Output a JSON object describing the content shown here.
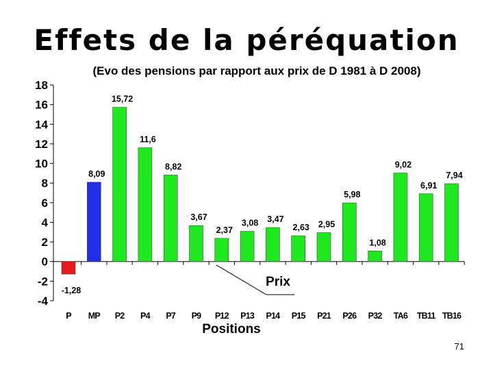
{
  "slide": {
    "title": "Effets de la péréquation",
    "subtitle": "(Evo des pensions par rapport aux prix de D 1981 à D 2008)",
    "page_number": "71"
  },
  "chart_data": {
    "type": "bar",
    "title": "Effets de la péréquation",
    "subtitle": "(Evo des pensions par rapport aux prix de D 1981 à D 2008)",
    "xlabel": "Positions",
    "ylabel": "",
    "ylim": [
      -4,
      18
    ],
    "yticks": [
      18,
      16,
      14,
      12,
      10,
      8,
      6,
      4,
      2,
      0,
      -2,
      -4
    ],
    "grid": false,
    "categories": [
      "P",
      "MP",
      "P2",
      "P4",
      "P7",
      "P9",
      "P12",
      "P13",
      "P14",
      "P15",
      "P21",
      "P26",
      "P32",
      "TA6",
      "TB11",
      "TB16"
    ],
    "values": [
      -1.28,
      8.09,
      15.72,
      11.6,
      8.82,
      3.67,
      2.37,
      3.08,
      3.47,
      2.63,
      2.95,
      5.98,
      1.08,
      9.02,
      6.91,
      7.94
    ],
    "value_labels": [
      "-1,28",
      "8,09",
      "15,72",
      "11,6",
      "8,82",
      "3,67",
      "2,37",
      "3,08",
      "3,47",
      "2,63",
      "2,95",
      "5,98",
      "1,08",
      "9,02",
      "6,91",
      "7,94"
    ],
    "bar_colors": [
      "#e8191c",
      "#1f2ee8",
      "#1ee81e",
      "#1ee81e",
      "#1ee81e",
      "#1ee81e",
      "#1ee81e",
      "#1ee81e",
      "#1ee81e",
      "#1ee81e",
      "#1ee81e",
      "#1ee81e",
      "#1ee81e",
      "#1ee81e",
      "#1ee81e",
      "#1ee81e"
    ],
    "annotation": {
      "text": "Prix",
      "target_category": "P12"
    }
  }
}
